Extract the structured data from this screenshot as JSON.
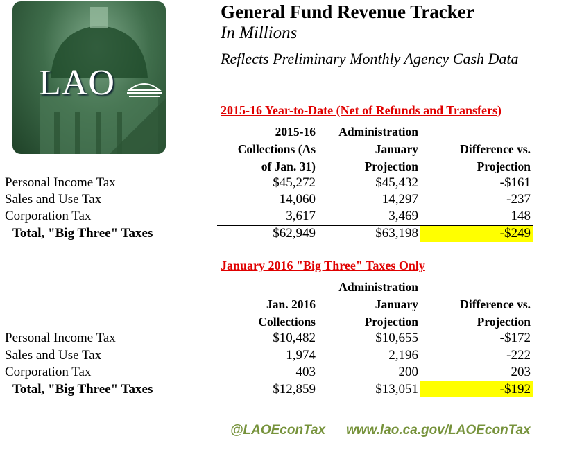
{
  "logo": {
    "text": "LAO"
  },
  "header": {
    "title": "General Fund Revenue Tracker",
    "subtitle": "In Millions",
    "note": "Reflects Preliminary Monthly Agency Cash Data"
  },
  "ytd": {
    "title": "2015-16 Year-to-Date (Net of Refunds and Transfers)",
    "headers": [
      [
        "2015-16",
        "Administration",
        ""
      ],
      [
        "Collections (As",
        "January",
        "Difference vs."
      ],
      [
        "of Jan. 31)",
        "Projection",
        "Projection"
      ]
    ],
    "rows": [
      {
        "label": "Personal Income Tax",
        "c1": "$45,272",
        "c2": "$45,432",
        "c3": "-$161"
      },
      {
        "label": "Sales and Use Tax",
        "c1": "14,060",
        "c2": "14,297",
        "c3": "-237"
      },
      {
        "label": "Corporation Tax",
        "c1": "3,617",
        "c2": "3,469",
        "c3": "148"
      },
      {
        "label": "Total, \"Big Three\" Taxes",
        "c1": "$62,949",
        "c2": "$63,198",
        "c3": "-$249"
      }
    ]
  },
  "jan": {
    "title": "January 2016 \"Big Three\" Taxes Only",
    "headers": [
      [
        "",
        "Administration",
        ""
      ],
      [
        "Jan. 2016",
        "January",
        "Difference vs."
      ],
      [
        "Collections",
        "Projection",
        "Projection"
      ]
    ],
    "rows": [
      {
        "label": "Personal Income Tax",
        "c1": "$10,482",
        "c2": "$10,655",
        "c3": "-$172"
      },
      {
        "label": "Sales and Use Tax",
        "c1": "1,974",
        "c2": "2,196",
        "c3": "-222"
      },
      {
        "label": "Corporation Tax",
        "c1": "403",
        "c2": "200",
        "c3": "203"
      },
      {
        "label": "Total, \"Big Three\" Taxes",
        "c1": "$12,859",
        "c2": "$13,051",
        "c3": "-$192"
      }
    ]
  },
  "footer": {
    "twitter": "@LAOEconTax",
    "url": "www.lao.ca.gov/LAOEconTax"
  },
  "colors": {
    "section_title": "#e00000",
    "highlight": "#ffff00",
    "footer": "#77933c",
    "logo_green": "#3f6d4b"
  }
}
